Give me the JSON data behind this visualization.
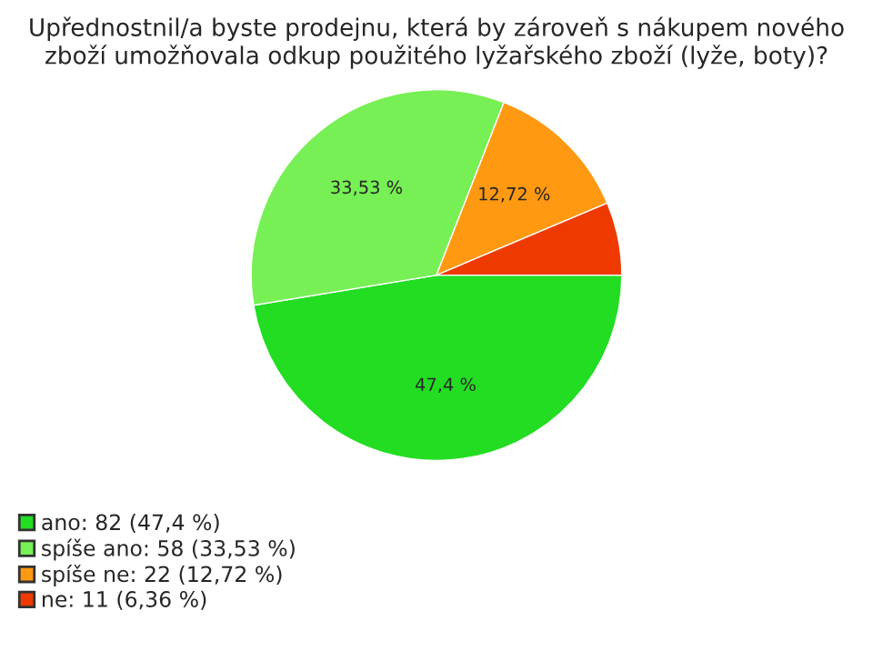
{
  "chart_data": {
    "type": "pie",
    "title": "Upřednostnil/a byste prodejnu, která by zároveň s nákupem nového zboží umožňovala odkup použitého lyžařského zboží (lyže, boty)?",
    "categories": [
      "ano: 82 (47,4 %)",
      "spíše ano: 58 (33,53 %)",
      "spíše ne: 22 (12,72 %)",
      "ne: 11 (6,36 %)"
    ],
    "values": [
      47.4,
      33.53,
      12.72,
      6.36
    ],
    "value_labels": [
      "47,4 %",
      "33,53 %",
      "12,72 %",
      null
    ],
    "colors": [
      "#22dd22",
      "#77f055",
      "#ff9911",
      "#ee3a00"
    ],
    "legend": "bottom left"
  }
}
